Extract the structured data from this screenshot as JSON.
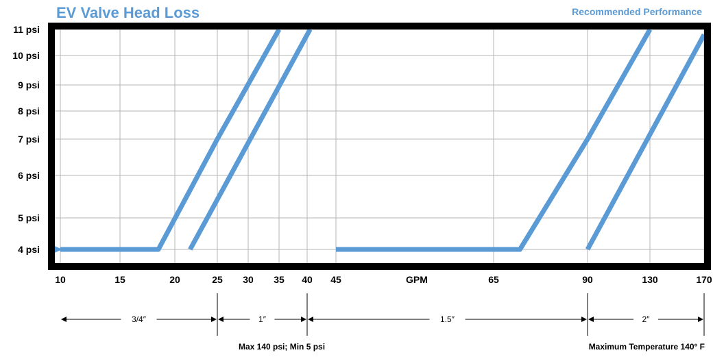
{
  "chart_data": {
    "type": "line",
    "title": "EV Valve Head Loss",
    "subtitle": "Recommended Performance",
    "xlabel": "GPM",
    "x_ticks": [
      "10",
      "15",
      "20",
      "25",
      "30",
      "35",
      "40",
      "45",
      "65",
      "90",
      "130",
      "170"
    ],
    "y_ticks": [
      "4 psi",
      "5 psi",
      "6 psi",
      "7 psi",
      "8 psi",
      "9 psi",
      "10 psi",
      "11 psi"
    ],
    "grid": true,
    "series_color": "#5b9bd5",
    "series": [
      {
        "points": [
          [
            10,
            4
          ],
          [
            18.5,
            4
          ],
          [
            25,
            7
          ],
          [
            35,
            11
          ]
        ],
        "arrow_start": true
      },
      {
        "points": [
          [
            21.8,
            4
          ],
          [
            40.5,
            11
          ]
        ]
      },
      {
        "points": [
          [
            45,
            4
          ],
          [
            72,
            4
          ],
          [
            90,
            7
          ],
          [
            130,
            11
          ]
        ]
      },
      {
        "points": [
          [
            90,
            4
          ],
          [
            170,
            10.8
          ]
        ]
      }
    ],
    "size_ranges": [
      {
        "label": "3/4″",
        "from": "10",
        "to": "25"
      },
      {
        "label": "1″",
        "from": "25",
        "to": "40"
      },
      {
        "label": "1.5″",
        "from": "40",
        "to": "90"
      },
      {
        "label": "2″",
        "from": "90",
        "to": "170"
      }
    ],
    "notes": [
      "Max 140 psi; Min 5 psi",
      "Maximum Temperature 140° F"
    ]
  },
  "colors": {
    "accent": "#5b9bd5",
    "frame": "#000000",
    "grid": "#b5b5b5"
  }
}
